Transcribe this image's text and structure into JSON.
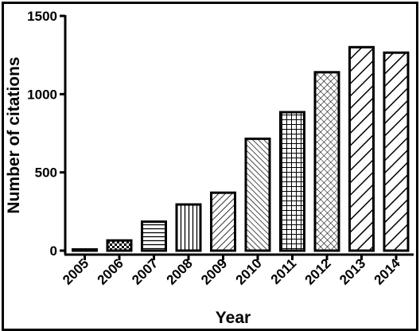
{
  "chart_data": {
    "type": "bar",
    "categories": [
      "2005",
      "2006",
      "2007",
      "2008",
      "2009",
      "2010",
      "2011",
      "2012",
      "2013",
      "2014"
    ],
    "values": [
      5,
      65,
      185,
      295,
      370,
      715,
      885,
      1140,
      1300,
      1265
    ],
    "patterns": [
      "solid",
      "checker",
      "horizontal",
      "vertical",
      "diagonal-forward",
      "diagonal-back",
      "grid",
      "crosshatch",
      "diagonal-forward-wide",
      "diagonal-forward-wide"
    ],
    "xlabel": "Year",
    "ylabel": "Number of citations",
    "ylim": [
      0,
      1500
    ],
    "yticks": [
      0,
      500,
      1000,
      1500
    ],
    "ytick_labels": [
      "0",
      "500",
      "1000",
      "1500"
    ],
    "grid": false,
    "bar_stroke_color": "#000000",
    "bar_fill_color": "#ffffff"
  }
}
